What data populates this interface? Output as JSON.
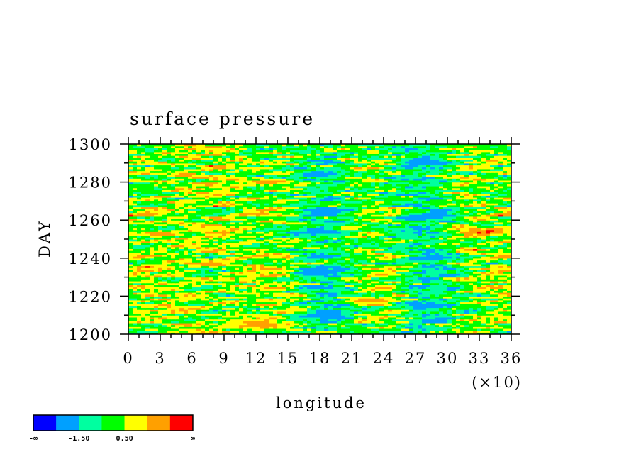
{
  "chart_data": {
    "type": "heatmap",
    "title": "surface pressure",
    "xlabel": "longitude",
    "ylabel": "DAY",
    "xlim": [
      0,
      36
    ],
    "ylim": [
      1200,
      1300
    ],
    "x_ticks": [
      "0",
      "3",
      "6",
      "9",
      "12",
      "15",
      "18",
      "21",
      "24",
      "27",
      "30",
      "33",
      "36"
    ],
    "y_ticks": [
      "1200",
      "1220",
      "1240",
      "1260",
      "1280",
      "1300"
    ],
    "x_multiplier": "(×10)",
    "x_tick_values": [
      0,
      3,
      6,
      9,
      12,
      15,
      18,
      21,
      24,
      27,
      30,
      33,
      36
    ],
    "y_tick_values": [
      1200,
      1220,
      1240,
      1260,
      1280,
      1300
    ],
    "colorbar": {
      "colors": [
        "#0000ff",
        "#00a0ff",
        "#00ffa0",
        "#00ff00",
        "#ffff00",
        "#ffa000",
        "#ff0000"
      ],
      "labels": [
        "-∞",
        "-1.50",
        "0.50",
        "∞"
      ],
      "levels": [
        -3.5,
        -1.5,
        -0.5,
        0.5,
        1.5,
        2.5
      ]
    },
    "features": [
      {
        "x": 17.5,
        "y": 1284,
        "value": -2.5
      },
      {
        "x": 18.5,
        "y": 1265,
        "value": -2.3
      },
      {
        "x": 18.5,
        "y": 1254,
        "value": -2.6
      },
      {
        "x": 18.0,
        "y": 1233,
        "value": -2.4
      },
      {
        "x": 18.5,
        "y": 1210,
        "value": -2.8
      },
      {
        "x": 28.0,
        "y": 1290,
        "value": -2.8
      },
      {
        "x": 28.0,
        "y": 1262,
        "value": -2.5
      },
      {
        "x": 28.5,
        "y": 1240,
        "value": -2.4
      },
      {
        "x": 28.0,
        "y": 1215,
        "value": -2.9
      },
      {
        "x": 12.5,
        "y": 1205,
        "value": 2.9
      },
      {
        "x": 34.0,
        "y": 1254,
        "value": 2.8
      },
      {
        "x": 13.0,
        "y": 1280,
        "value": 2.4
      },
      {
        "x": 22.5,
        "y": 1218,
        "value": 2.3
      },
      {
        "x": 3.0,
        "y": 1253,
        "value": 2.2
      },
      {
        "x": 8.0,
        "y": 1237,
        "value": 2.0
      }
    ]
  }
}
